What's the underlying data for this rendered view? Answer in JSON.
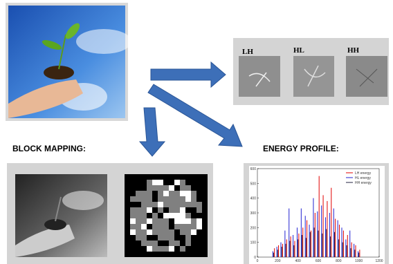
{
  "wavelet_labels": [
    "LH",
    "HL",
    "HH"
  ],
  "block_mapping_label": "BLOCK MAPPING:",
  "energy_profile_label": "ENERGY PROFILE:",
  "chart_data": {
    "type": "spike",
    "xlim": [
      0,
      1200
    ],
    "ylim": [
      0,
      600
    ],
    "xticks": [
      0,
      200,
      400,
      600,
      800,
      1000,
      1200
    ],
    "yticks": [
      0,
      100,
      200,
      300,
      400,
      500,
      600
    ],
    "legend": "top-right",
    "x": [
      160,
      200,
      240,
      280,
      320,
      360,
      400,
      440,
      480,
      520,
      560,
      600,
      640,
      680,
      720,
      760,
      800,
      840,
      880,
      920,
      960,
      1000
    ],
    "series": [
      {
        "name": "LH energy",
        "color": "#e00000",
        "values": [
          60,
          80,
          90,
          120,
          140,
          110,
          160,
          200,
          250,
          180,
          300,
          550,
          420,
          380,
          470,
          260,
          220,
          180,
          150,
          100,
          80,
          50
        ]
      },
      {
        "name": "HL energy",
        "color": "#2020d0",
        "values": [
          40,
          70,
          100,
          180,
          330,
          150,
          200,
          330,
          280,
          220,
          400,
          310,
          350,
          270,
          300,
          330,
          250,
          200,
          120,
          180,
          90,
          40
        ]
      },
      {
        "name": "HH energy",
        "color": "#202040",
        "values": [
          30,
          50,
          70,
          90,
          110,
          80,
          120,
          150,
          130,
          170,
          200,
          180,
          160,
          190,
          140,
          170,
          120,
          100,
          80,
          60,
          50,
          30
        ]
      }
    ]
  }
}
